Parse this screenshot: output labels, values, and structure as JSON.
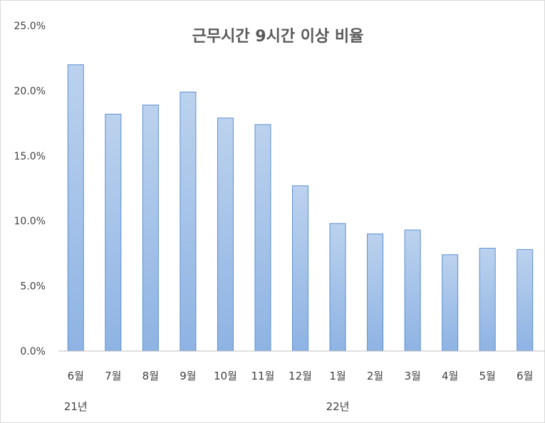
{
  "chart_data": {
    "type": "bar",
    "title": "근무시간 9시간 이상 비율",
    "categories": [
      "6월",
      "7월",
      "8월",
      "9월",
      "10월",
      "11월",
      "12월",
      "1월",
      "2월",
      "3월",
      "4월",
      "5월",
      "6월"
    ],
    "groups": [
      {
        "label": "21년",
        "first_category_index": 0
      },
      {
        "label": "22년",
        "first_category_index": 7
      }
    ],
    "values": [
      22.0,
      18.2,
      18.9,
      19.9,
      17.9,
      17.4,
      12.7,
      9.8,
      9.0,
      9.3,
      7.4,
      7.9,
      7.8
    ],
    "value_unit": "%",
    "ylim": [
      0,
      25
    ],
    "y_ticks": [
      "0.0%",
      "5.0%",
      "10.0%",
      "15.0%",
      "20.0%",
      "25.0%"
    ],
    "y_tick_values": [
      0,
      5,
      10,
      15,
      20,
      25
    ],
    "grid": false,
    "legend": "none",
    "colors": {
      "bar_top": "#bcd2ee",
      "bar_bottom": "#8eb3e3",
      "bar_stroke": "#5b8fd1",
      "axis": "#bfbfbf",
      "text": "#404040",
      "title": "#595959"
    }
  }
}
